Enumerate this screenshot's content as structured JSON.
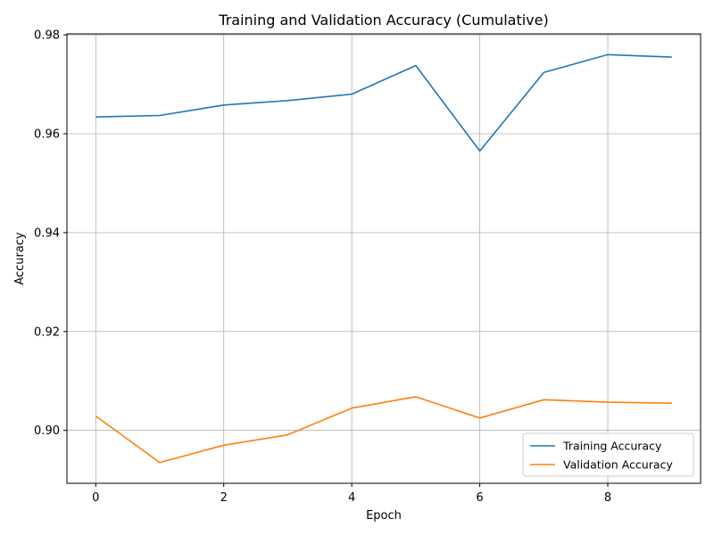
{
  "chart_data": {
    "type": "line",
    "title": "Training and Validation Accuracy (Cumulative)",
    "xlabel": "Epoch",
    "ylabel": "Accuracy",
    "x": [
      0,
      1,
      2,
      3,
      4,
      5,
      6,
      7,
      8,
      9
    ],
    "xticks": [
      0,
      2,
      4,
      6,
      8
    ],
    "yticks": [
      0.9,
      0.92,
      0.94,
      0.96,
      0.98
    ],
    "ytick_labels": [
      "0.90",
      "0.92",
      "0.94",
      "0.96",
      "0.98"
    ],
    "xlim": [
      -0.45,
      9.45
    ],
    "ylim": [
      0.8893,
      0.9802
    ],
    "grid": true,
    "legend_position": "lower-right",
    "series": [
      {
        "name": "Training Accuracy",
        "color": "#1f77b4",
        "values": [
          0.9634,
          0.9637,
          0.9658,
          0.9667,
          0.968,
          0.9738,
          0.9565,
          0.9724,
          0.976,
          0.9755
        ]
      },
      {
        "name": "Validation Accuracy",
        "color": "#ff7f0e",
        "values": [
          0.9029,
          0.8935,
          0.897,
          0.8991,
          0.9045,
          0.9068,
          0.9025,
          0.9062,
          0.9057,
          0.9055
        ]
      }
    ]
  }
}
